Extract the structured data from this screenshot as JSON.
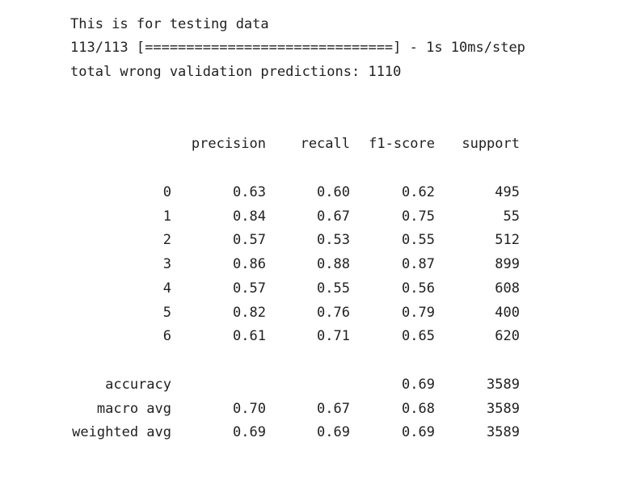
{
  "log": {
    "line1": "This is for testing data",
    "line2": "113/113 [==============================] - 1s 10ms/step",
    "line3": "total wrong validation predictions: 1110"
  },
  "report": {
    "headers": [
      "precision",
      "recall",
      "f1-score",
      "support"
    ],
    "rows": [
      {
        "label": "0",
        "precision": "0.63",
        "recall": "0.60",
        "f1": "0.62",
        "support": "495"
      },
      {
        "label": "1",
        "precision": "0.84",
        "recall": "0.67",
        "f1": "0.75",
        "support": "55"
      },
      {
        "label": "2",
        "precision": "0.57",
        "recall": "0.53",
        "f1": "0.55",
        "support": "512"
      },
      {
        "label": "3",
        "precision": "0.86",
        "recall": "0.88",
        "f1": "0.87",
        "support": "899"
      },
      {
        "label": "4",
        "precision": "0.57",
        "recall": "0.55",
        "f1": "0.56",
        "support": "608"
      },
      {
        "label": "5",
        "precision": "0.82",
        "recall": "0.76",
        "f1": "0.79",
        "support": "400"
      },
      {
        "label": "6",
        "precision": "0.61",
        "recall": "0.71",
        "f1": "0.65",
        "support": "620"
      }
    ],
    "summary": [
      {
        "label": "accuracy",
        "precision": "",
        "recall": "",
        "f1": "0.69",
        "support": "3589"
      },
      {
        "label": "macro avg",
        "precision": "0.70",
        "recall": "0.67",
        "f1": "0.68",
        "support": "3589"
      },
      {
        "label": "weighted avg",
        "precision": "0.69",
        "recall": "0.69",
        "f1": "0.69",
        "support": "3589"
      }
    ]
  }
}
